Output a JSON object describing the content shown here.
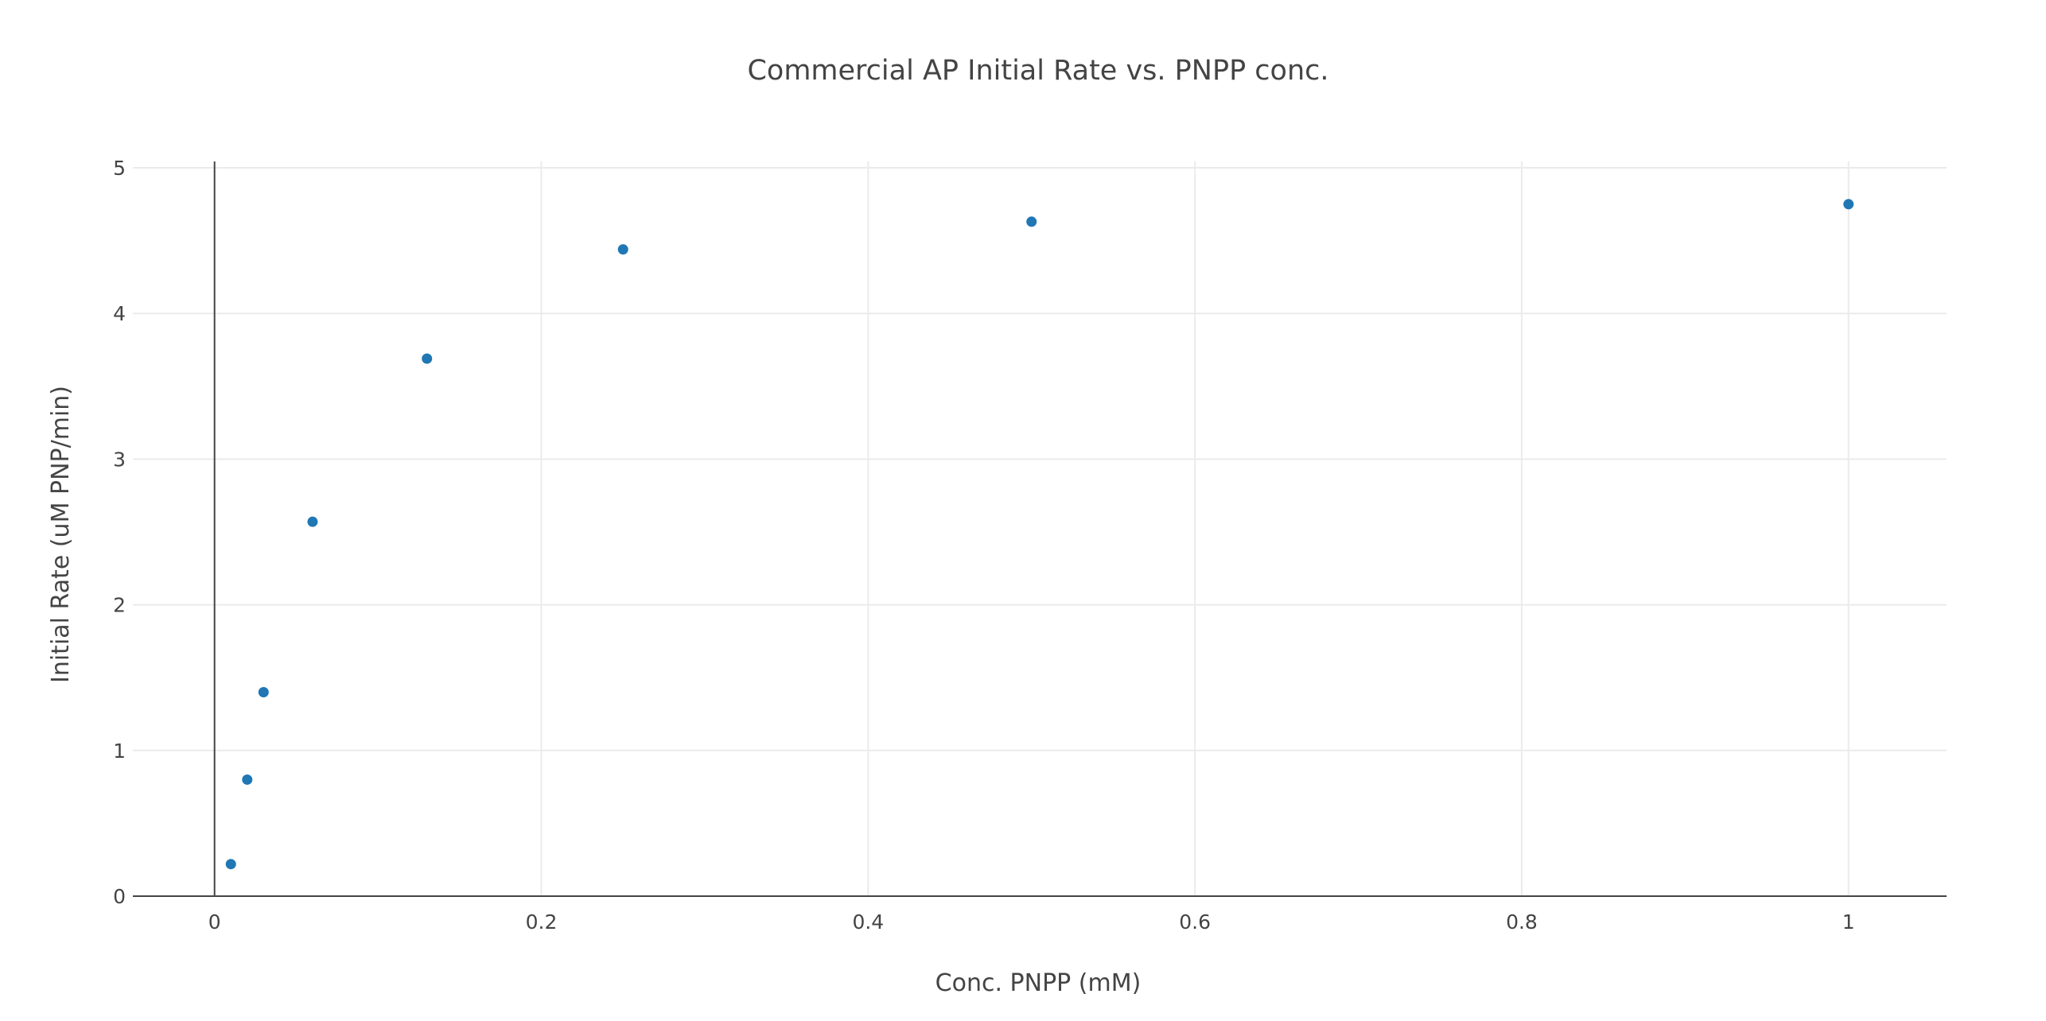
{
  "chart_data": {
    "type": "scatter",
    "title": "Commercial AP Initial Rate vs. PNPP conc.",
    "xlabel": "Conc. PNPP (mM)",
    "ylabel": "Initial Rate (uM PNP/min)",
    "xlim": [
      -0.05,
      1.06
    ],
    "ylim": [
      0,
      5.05
    ],
    "xticks": [
      0,
      0.2,
      0.4,
      0.6,
      0.8,
      1
    ],
    "xtick_labels": [
      "0",
      "0.2",
      "0.4",
      "0.6",
      "0.8",
      "1"
    ],
    "yticks": [
      0,
      1,
      2,
      3,
      4,
      5
    ],
    "ytick_labels": [
      "0",
      "1",
      "2",
      "3",
      "4",
      "5"
    ],
    "grid": true,
    "legend": "none",
    "marker_color": "#1f77b4",
    "series": [
      {
        "x": [
          0.01,
          0.02,
          0.03,
          0.06,
          0.13,
          0.25,
          0.5,
          1.0
        ],
        "y": [
          0.22,
          0.8,
          1.4,
          2.57,
          3.69,
          4.44,
          4.63,
          4.75
        ]
      }
    ]
  }
}
